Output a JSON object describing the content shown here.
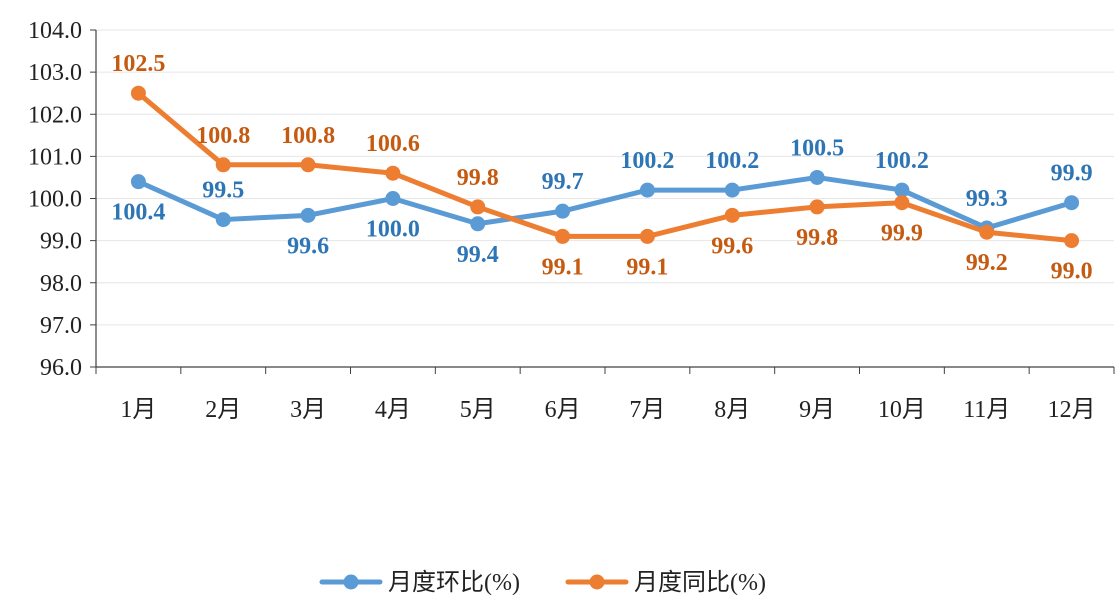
{
  "chart_data": {
    "type": "line",
    "categories": [
      "1月",
      "2月",
      "3月",
      "4月",
      "5月",
      "6月",
      "7月",
      "8月",
      "9月",
      "10月",
      "11月",
      "12月"
    ],
    "ylim": [
      96.0,
      104.0
    ],
    "y_ticks": [
      "96.0",
      "97.0",
      "98.0",
      "99.0",
      "100.0",
      "101.0",
      "102.0",
      "103.0",
      "104.0"
    ],
    "grid": true,
    "legend_position": "bottom",
    "series": [
      {
        "name": "月度环比(%)",
        "color": "#5b9bd5",
        "label_color": "#2e75b6",
        "values": [
          100.4,
          99.5,
          99.6,
          100.0,
          99.4,
          99.7,
          100.2,
          100.2,
          100.5,
          100.2,
          99.3,
          99.9
        ],
        "labels": [
          "100.4",
          "99.5",
          "99.6",
          "100.0",
          "99.4",
          "99.7",
          "100.2",
          "100.2",
          "100.5",
          "100.2",
          "99.3",
          "99.9"
        ]
      },
      {
        "name": "月度同比(%)",
        "color": "#ed7d31",
        "label_color": "#c55a11",
        "values": [
          102.5,
          100.8,
          100.8,
          100.6,
          99.8,
          99.1,
          99.1,
          99.6,
          99.8,
          99.9,
          99.2,
          99.0
        ],
        "labels": [
          "102.5",
          "100.8",
          "100.8",
          "100.6",
          "99.8",
          "99.1",
          "99.1",
          "99.6",
          "99.8",
          "99.9",
          "99.2",
          "99.0"
        ]
      }
    ]
  }
}
